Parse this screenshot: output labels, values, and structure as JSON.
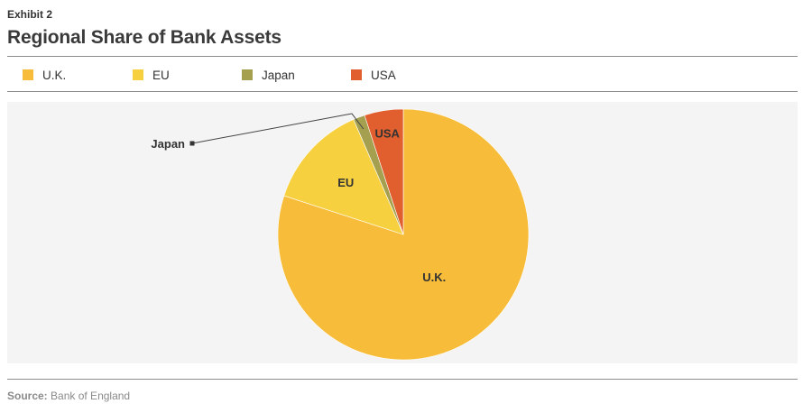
{
  "header": {
    "exhibit": "Exhibit 2",
    "title": "Regional Share of Bank Assets"
  },
  "legend": {
    "items": [
      {
        "label": "U.K.",
        "color": "#f7bd3a"
      },
      {
        "label": "EU",
        "color": "#f7d03f"
      },
      {
        "label": "Japan",
        "color": "#a4a050"
      },
      {
        "label": "USA",
        "color": "#e15f2e"
      }
    ]
  },
  "chart_data": {
    "type": "pie",
    "title": "Regional Share of Bank Assets",
    "start_angle_deg": 0,
    "direction": "clockwise",
    "slices": [
      {
        "label": "U.K.",
        "value": 80,
        "color": "#f7bd3a",
        "data_label": "U.K."
      },
      {
        "label": "EU",
        "value": 13.5,
        "color": "#f7d03f",
        "data_label": "EU"
      },
      {
        "label": "Japan",
        "value": 1.5,
        "color": "#a4a050",
        "data_label": "Japan"
      },
      {
        "label": "USA",
        "value": 5,
        "color": "#e15f2e",
        "data_label": "USA"
      }
    ],
    "callout_label": "Japan",
    "legend_position": "top"
  },
  "footer": {
    "source_label": "Source:",
    "source_text": "Bank of England"
  }
}
